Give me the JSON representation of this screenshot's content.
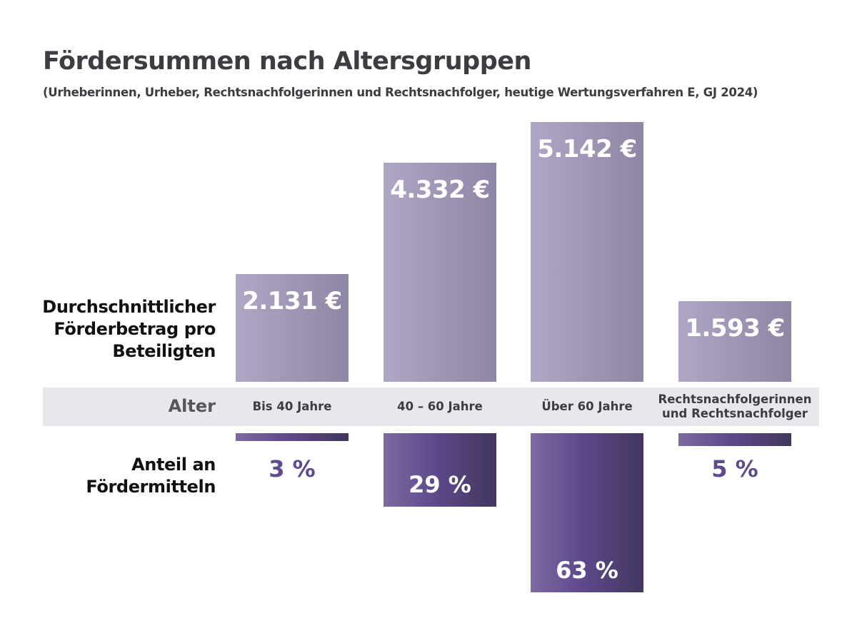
{
  "chart_data": {
    "type": "bar",
    "title": "Fördersummen nach Altersgruppen",
    "subtitle": "(Urheberinnen, Urheber, Rechtsnachfolgerinnen und Rechtsnachfolger, heutige Wertungsverfahren E, GJ 2024)",
    "category_axis_label": "Alter",
    "categories": [
      "Bis 40 Jahre",
      "40 – 60 Jahre",
      "Über 60 Jahre",
      "Rechtsnachfolgerinnen und Rechtsnachfolger"
    ],
    "series": [
      {
        "name": "Durchschnittlicher Förderbetrag pro Beteiligten",
        "values": [
          2131,
          4332,
          5142,
          1593
        ],
        "labels": [
          "2.131 €",
          "4.332 €",
          "5.142 €",
          "1.593 €"
        ],
        "unit": "€",
        "color": "#9f95b5"
      },
      {
        "name": "Anteil an Fördermitteln",
        "values": [
          3,
          29,
          63,
          5
        ],
        "labels": [
          "3 %",
          "29 %",
          "63 %",
          "5 %"
        ],
        "unit": "%",
        "color": "#5e4a8c"
      }
    ],
    "row_labels": [
      "Durchschnittlicher Förderbetrag pro Beteiligten",
      "Anteil an Fördermitteln"
    ],
    "label_colors": {
      "outside": "#5e4a8c",
      "inside": "#ffffff"
    }
  }
}
